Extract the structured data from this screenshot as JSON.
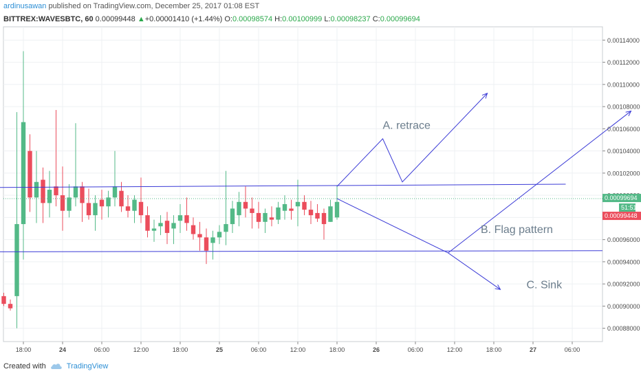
{
  "header": {
    "author": "ardinusawan",
    "published": "published on TradingView.com, December 25, 2017 01:08 EST",
    "symbol": "BITTREX:WAVESBTC, 60",
    "last": "0.00099448",
    "change_arrow": "▲",
    "change": "+0.00001410 (+1.44%)",
    "o_label": "O:",
    "o_value": "0.00098574",
    "h_label": "H:",
    "h_value": "0.00100999",
    "l_label": "L:",
    "l_value": "0.00098237",
    "c_label": "C:",
    "c_value": "0.00099694"
  },
  "footer": {
    "created_with": "Created with",
    "brand": "TradingView",
    "logo_icon": "tradingview-cloud-icon"
  },
  "colors": {
    "up": "#53b987",
    "down": "#eb4d5c",
    "drawing": "#3a3ad6",
    "text_annotation": "#6b7d8c",
    "grid": "#eef0f3"
  },
  "chart_data": {
    "type": "candlestick",
    "price_axis": {
      "ylim": [
        0.000868,
        0.001152
      ],
      "tick_labels": [
        "0.00114000",
        "0.00112000",
        "0.00110000",
        "0.00108000",
        "0.00106000",
        "0.00104000",
        "0.00102000",
        "0.00100000",
        "0.00098000",
        "0.00096000",
        "0.00094000",
        "0.00092000",
        "0.00090000",
        "0.00088000"
      ],
      "tick_values": [
        0.00114,
        0.00112,
        0.0011,
        0.00108,
        0.00106,
        0.00104,
        0.00102,
        0.001,
        0.00098,
        0.00096,
        0.00094,
        0.00092,
        0.0009,
        0.00088
      ],
      "price_tags": [
        {
          "label": "0.00099694",
          "value": 0.00099694,
          "color": "#53b987"
        },
        {
          "label": "51:51",
          "value": 0.000982,
          "color": "#53b987"
        },
        {
          "label": "0.00099448",
          "value": 0.00099448,
          "color": "#eb4d5c"
        }
      ]
    },
    "time_axis": {
      "labels": [
        "18:00",
        "24",
        "06:00",
        "12:00",
        "18:00",
        "25",
        "06:00",
        "12:00",
        "18:00",
        "26",
        "06:00",
        "12:00",
        "18:00",
        "27",
        "06:00"
      ],
      "label_hours": [
        18,
        24,
        30,
        36,
        42,
        48,
        54,
        60,
        66,
        72,
        78,
        84,
        90,
        96,
        102
      ]
    },
    "candles": [
      {
        "t": 14,
        "o": 0.000911,
        "h": 0.000914,
        "l": 0.000906,
        "c": 0.000908
      },
      {
        "t": 15,
        "o": 0.000909,
        "h": 0.000912,
        "l": 0.0009,
        "c": 0.000902
      },
      {
        "t": 16,
        "o": 0.000902,
        "h": 0.000906,
        "l": 0.000896,
        "c": 0.000898
      },
      {
        "t": 17,
        "o": 0.000909,
        "h": 0.001075,
        "l": 0.00088,
        "c": 0.000974
      },
      {
        "t": 18,
        "o": 0.000974,
        "h": 0.00113,
        "l": 0.000942,
        "c": 0.001066
      },
      {
        "t": 19,
        "o": 0.00104,
        "h": 0.001055,
        "l": 0.000985,
        "c": 0.000998
      },
      {
        "t": 20,
        "o": 0.000998,
        "h": 0.00104,
        "l": 0.000975,
        "c": 0.001012
      },
      {
        "t": 21,
        "o": 0.001014,
        "h": 0.001025,
        "l": 0.000975,
        "c": 0.000993
      },
      {
        "t": 22,
        "o": 0.000993,
        "h": 0.001022,
        "l": 0.00098,
        "c": 0.001005
      },
      {
        "t": 23,
        "o": 0.001008,
        "h": 0.001077,
        "l": 0.00099,
        "c": 0.001
      },
      {
        "t": 24,
        "o": 0.001,
        "h": 0.001026,
        "l": 0.000968,
        "c": 0.000986
      },
      {
        "t": 25,
        "o": 0.000986,
        "h": 0.00101,
        "l": 0.00098,
        "c": 0.000998
      },
      {
        "t": 26,
        "o": 0.000998,
        "h": 0.001065,
        "l": 0.00099,
        "c": 0.001008
      },
      {
        "t": 27,
        "o": 0.001008,
        "h": 0.001012,
        "l": 0.000976,
        "c": 0.000993
      },
      {
        "t": 28,
        "o": 0.000993,
        "h": 0.001006,
        "l": 0.000978,
        "c": 0.000982
      },
      {
        "t": 29,
        "o": 0.000982,
        "h": 0.001,
        "l": 0.000968,
        "c": 0.000993
      },
      {
        "t": 30,
        "o": 0.000996,
        "h": 0.001005,
        "l": 0.000978,
        "c": 0.00099
      },
      {
        "t": 31,
        "o": 0.00099,
        "h": 0.001004,
        "l": 0.00098,
        "c": 0.000998
      },
      {
        "t": 32,
        "o": 0.000998,
        "h": 0.00104,
        "l": 0.00099,
        "c": 0.001008
      },
      {
        "t": 33,
        "o": 0.001004,
        "h": 0.001012,
        "l": 0.000985,
        "c": 0.00099
      },
      {
        "t": 34,
        "o": 0.00099,
        "h": 0.001,
        "l": 0.00098,
        "c": 0.000986
      },
      {
        "t": 35,
        "o": 0.000986,
        "h": 0.001,
        "l": 0.000975,
        "c": 0.000996
      },
      {
        "t": 36,
        "o": 0.000994,
        "h": 0.001016,
        "l": 0.000975,
        "c": 0.000982
      },
      {
        "t": 37,
        "o": 0.000982,
        "h": 0.00099,
        "l": 0.000962,
        "c": 0.000968
      },
      {
        "t": 38,
        "o": 0.000968,
        "h": 0.000978,
        "l": 0.000958,
        "c": 0.00097
      },
      {
        "t": 39,
        "o": 0.000972,
        "h": 0.000982,
        "l": 0.000964,
        "c": 0.000975
      },
      {
        "t": 40,
        "o": 0.000977,
        "h": 0.000985,
        "l": 0.000956,
        "c": 0.000966
      },
      {
        "t": 41,
        "o": 0.00097,
        "h": 0.000982,
        "l": 0.000956,
        "c": 0.000975
      },
      {
        "t": 42,
        "o": 0.000977,
        "h": 0.000992,
        "l": 0.000966,
        "c": 0.000982
      },
      {
        "t": 43,
        "o": 0.000982,
        "h": 0.000998,
        "l": 0.000968,
        "c": 0.000975
      },
      {
        "t": 44,
        "o": 0.000973,
        "h": 0.00098,
        "l": 0.00096,
        "c": 0.000965
      },
      {
        "t": 45,
        "o": 0.000965,
        "h": 0.000976,
        "l": 0.00095,
        "c": 0.000962
      },
      {
        "t": 46,
        "o": 0.000962,
        "h": 0.00097,
        "l": 0.000938,
        "c": 0.00095
      },
      {
        "t": 47,
        "o": 0.000957,
        "h": 0.000968,
        "l": 0.000942,
        "c": 0.000962
      },
      {
        "t": 48,
        "o": 0.000962,
        "h": 0.000973,
        "l": 0.000956,
        "c": 0.000967
      },
      {
        "t": 49,
        "o": 0.000967,
        "h": 0.001022,
        "l": 0.000955,
        "c": 0.000974
      },
      {
        "t": 50,
        "o": 0.000974,
        "h": 0.000995,
        "l": 0.000966,
        "c": 0.000988
      },
      {
        "t": 51,
        "o": 0.000982,
        "h": 0.001003,
        "l": 0.000972,
        "c": 0.000994
      },
      {
        "t": 52,
        "o": 0.000994,
        "h": 0.001008,
        "l": 0.00098,
        "c": 0.000988
      },
      {
        "t": 53,
        "o": 0.000988,
        "h": 0.000998,
        "l": 0.00097,
        "c": 0.000984
      },
      {
        "t": 54,
        "o": 0.000984,
        "h": 0.000994,
        "l": 0.00097,
        "c": 0.000976
      },
      {
        "t": 55,
        "o": 0.000976,
        "h": 0.000988,
        "l": 0.000966,
        "c": 0.000984
      },
      {
        "t": 56,
        "o": 0.00098,
        "h": 0.00099,
        "l": 0.000972,
        "c": 0.000978
      },
      {
        "t": 57,
        "o": 0.000978,
        "h": 0.000994,
        "l": 0.000974,
        "c": 0.000989
      },
      {
        "t": 58,
        "o": 0.000986,
        "h": 0.001,
        "l": 0.000978,
        "c": 0.000992
      },
      {
        "t": 59,
        "o": 0.000988,
        "h": 0.000996,
        "l": 0.000978,
        "c": 0.000986
      },
      {
        "t": 60,
        "o": 0.00099,
        "h": 0.001014,
        "l": 0.000972,
        "c": 0.000994
      },
      {
        "t": 61,
        "o": 0.000994,
        "h": 0.001,
        "l": 0.000982,
        "c": 0.000987
      },
      {
        "t": 62,
        "o": 0.000987,
        "h": 0.000995,
        "l": 0.000974,
        "c": 0.000982
      },
      {
        "t": 63,
        "o": 0.000984,
        "h": 0.000992,
        "l": 0.000976,
        "c": 0.000979
      },
      {
        "t": 64,
        "o": 0.000984,
        "h": 0.000988,
        "l": 0.00096,
        "c": 0.000974
      },
      {
        "t": 65,
        "o": 0.000976,
        "h": 0.000996,
        "l": 0.000976,
        "c": 0.00099
      },
      {
        "t": 66,
        "o": 0.00098,
        "h": 0.001009,
        "l": 0.000978,
        "c": 0.000994
      }
    ],
    "drawings": {
      "resistance_line": {
        "from": {
          "t": 13,
          "p": 0.001007
        },
        "to": {
          "t": 101,
          "p": 0.00101
        }
      },
      "support_line": {
        "from": {
          "t": 13,
          "p": 0.000949
        },
        "to": {
          "t": 147,
          "p": 0.00095
        }
      },
      "arrows": [
        {
          "points": [
            {
              "t": 66,
              "p": 0.001008
            },
            {
              "t": 73,
              "p": 0.001051
            },
            {
              "t": 76,
              "p": 0.001012
            },
            {
              "t": 89,
              "p": 0.001092
            }
          ]
        },
        {
          "points": [
            {
              "t": 83,
              "p": 0.000948
            },
            {
              "t": 111,
              "p": 0.001076
            }
          ]
        },
        {
          "points": [
            {
              "t": 66,
              "p": 0.000997
            },
            {
              "t": 83,
              "p": 0.000948
            },
            {
              "t": 91,
              "p": 0.000915
            }
          ]
        }
      ]
    },
    "annotations": [
      {
        "text": "A. retrace",
        "t": 73,
        "p": 0.00106
      },
      {
        "text": "B. Flag pattern",
        "t": 88,
        "p": 0.000966
      },
      {
        "text": "C. Sink",
        "t": 95,
        "p": 0.000916
      }
    ]
  }
}
